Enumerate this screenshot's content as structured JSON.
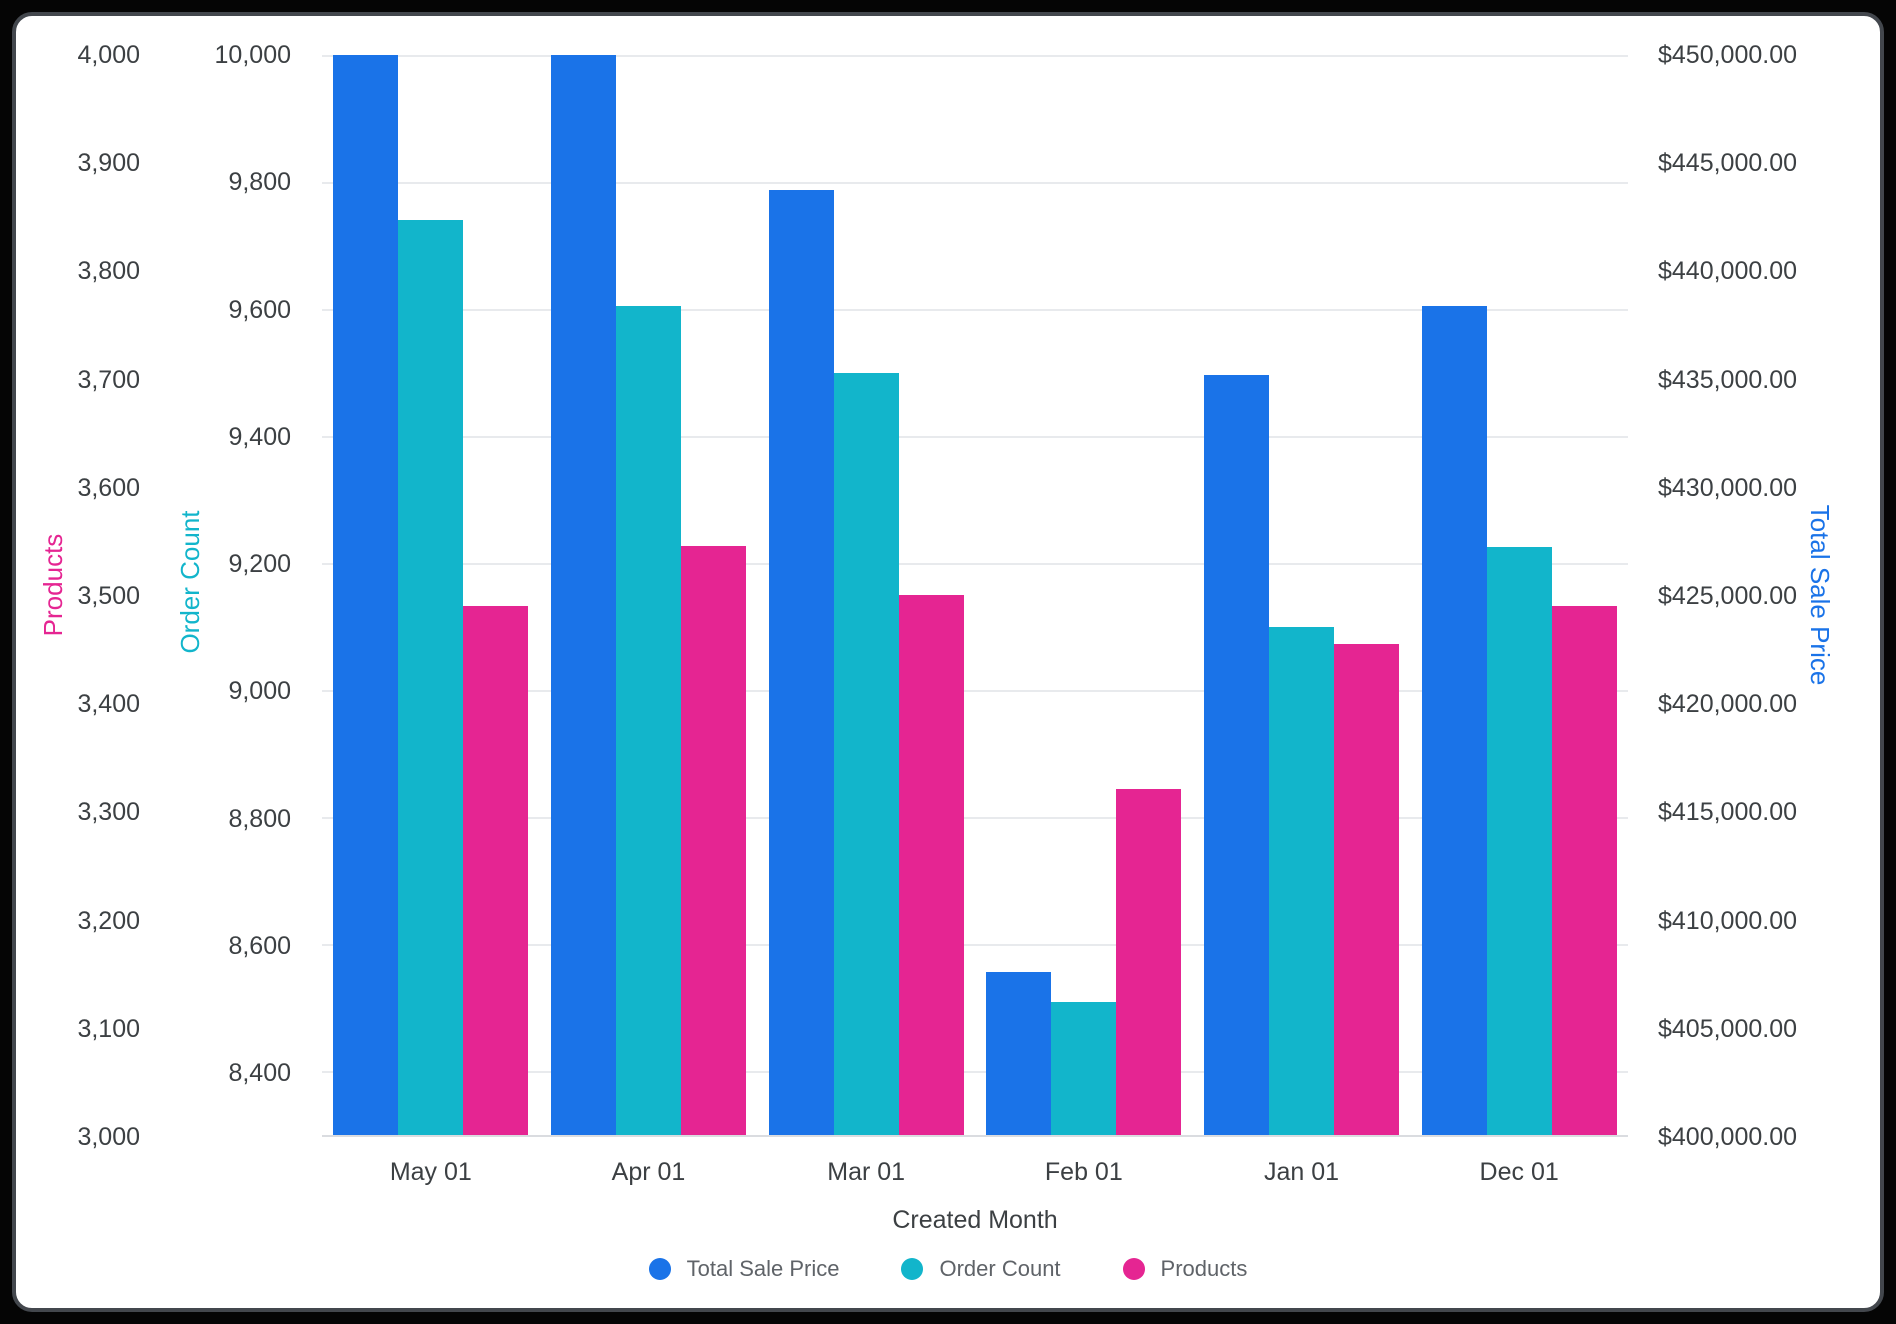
{
  "style": {
    "frame_bg": "#050505",
    "card_bg": "#FFFFFF",
    "card_border": "#43474D",
    "grid_color": "#E8EAED",
    "axis_line_color": "#DADCE0",
    "tick_text_color": "#3C4043",
    "legend_text_color": "#5F6368"
  },
  "chart_data": {
    "type": "bar",
    "title": "",
    "categories": [
      "May 01",
      "Apr 01",
      "Mar 01",
      "Feb 01",
      "Jan 01",
      "Dec 01"
    ],
    "x_axis_title": "Created Month",
    "series": [
      {
        "name": "Total Sale Price",
        "axis": "total_sale_price",
        "color": "#1A73E8",
        "values": [
          450000,
          450000,
          443760,
          407530,
          435170,
          438400
        ]
      },
      {
        "name": "Order Count",
        "axis": "order_count",
        "color": "#12B5CB",
        "values": [
          9740,
          9605,
          9500,
          8510,
          9100,
          9225
        ]
      },
      {
        "name": "Products",
        "axis": "products",
        "color": "#E52592",
        "values": [
          3490,
          3545,
          3500,
          3320,
          3455,
          3490
        ]
      }
    ],
    "axes": {
      "products": {
        "title": "Products",
        "title_color": "#E52592",
        "side": "left-outer",
        "min": 3000,
        "max": 4000,
        "ticks": [
          {
            "value": 4000,
            "label": "4,000"
          },
          {
            "value": 3900,
            "label": "3,900"
          },
          {
            "value": 3800,
            "label": "3,800"
          },
          {
            "value": 3700,
            "label": "3,700"
          },
          {
            "value": 3600,
            "label": "3,600"
          },
          {
            "value": 3500,
            "label": "3,500"
          },
          {
            "value": 3400,
            "label": "3,400"
          },
          {
            "value": 3300,
            "label": "3,300"
          },
          {
            "value": 3200,
            "label": "3,200"
          },
          {
            "value": 3100,
            "label": "3,100"
          },
          {
            "value": 3000,
            "label": "3,000"
          }
        ]
      },
      "order_count": {
        "title": "Order Count",
        "title_color": "#12B5CB",
        "side": "left-inner",
        "min": 8300,
        "max": 10000,
        "ticks": [
          {
            "value": 10000,
            "label": "10,000"
          },
          {
            "value": 9800,
            "label": "9,800"
          },
          {
            "value": 9600,
            "label": "9,600"
          },
          {
            "value": 9400,
            "label": "9,400"
          },
          {
            "value": 9200,
            "label": "9,200"
          },
          {
            "value": 9000,
            "label": "9,000"
          },
          {
            "value": 8800,
            "label": "8,800"
          },
          {
            "value": 8600,
            "label": "8,600"
          },
          {
            "value": 8400,
            "label": "8,400"
          }
        ]
      },
      "total_sale_price": {
        "title": "Total Sale Price",
        "title_color": "#1A73E8",
        "side": "right",
        "min": 400000,
        "max": 450000,
        "ticks": [
          {
            "value": 450000,
            "label": "$450,000.00"
          },
          {
            "value": 445000,
            "label": "$445,000.00"
          },
          {
            "value": 440000,
            "label": "$440,000.00"
          },
          {
            "value": 435000,
            "label": "$435,000.00"
          },
          {
            "value": 430000,
            "label": "$430,000.00"
          },
          {
            "value": 425000,
            "label": "$425,000.00"
          },
          {
            "value": 420000,
            "label": "$420,000.00"
          },
          {
            "value": 415000,
            "label": "$415,000.00"
          },
          {
            "value": 410000,
            "label": "$410,000.00"
          },
          {
            "value": 405000,
            "label": "$405,000.00"
          },
          {
            "value": 400000,
            "label": "$400,000.00"
          }
        ]
      }
    },
    "gridlines": {
      "axis": "order_count",
      "values": [
        10000,
        9800,
        9600,
        9400,
        9200,
        9000,
        8800,
        8600,
        8400
      ]
    },
    "legend": {
      "position": "bottom",
      "items": [
        {
          "label": "Total Sale Price",
          "color": "#1A73E8"
        },
        {
          "label": "Order Count",
          "color": "#12B5CB"
        },
        {
          "label": "Products",
          "color": "#E52592"
        }
      ]
    }
  }
}
